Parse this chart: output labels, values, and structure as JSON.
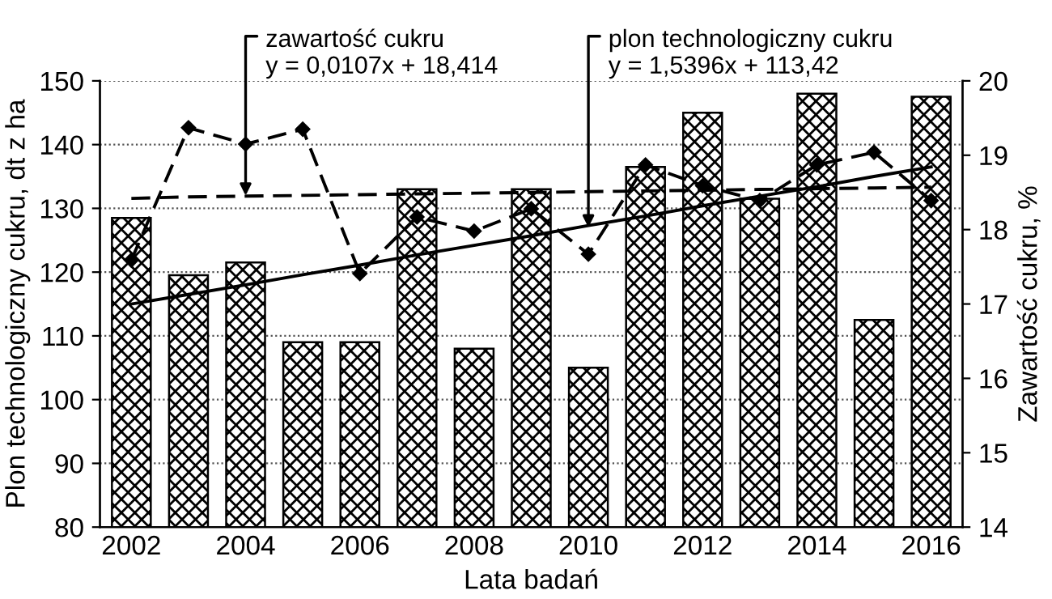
{
  "chart_data": {
    "type": "bar",
    "xlabel": "Lata badań",
    "ylabel": "Plon technologiczny cukru, dt z ha",
    "y2label": "Zawartość cukru, %",
    "categories": [
      "2002",
      null,
      "2004",
      null,
      "2006",
      null,
      "2008",
      null,
      "2010",
      null,
      "2012",
      null,
      "2014",
      null,
      "2016"
    ],
    "series": [
      {
        "color": "#000000",
        "values": [
          128.5,
          119.5,
          121.5,
          109,
          109,
          133,
          108,
          133,
          105,
          136.5,
          145,
          131.5,
          148,
          112.5,
          147.5
        ]
      },
      {
        "type": "line",
        "axis": "y2",
        "color": "#000000",
        "line_style": "dashed",
        "marker": "diamond",
        "values": [
          17.59,
          19.37,
          19.15,
          19.35,
          17.41,
          18.17,
          17.98,
          18.28,
          17.67,
          18.87,
          18.59,
          18.39,
          18.87,
          19.04,
          18.39
        ]
      },
      {
        "type": "line",
        "color": "#000000",
        "line_style": "solid",
        "marker": "none",
        "values": [
          115.0,
          116.5,
          118.0,
          119.6,
          121.1,
          122.7,
          124.2,
          125.7,
          127.3,
          128.8,
          130.4,
          131.9,
          133.4,
          135.0,
          136.5
        ]
      },
      {
        "type": "line",
        "axis": "y2",
        "color": "#000000",
        "line_style": "dashed",
        "marker": "none",
        "values": [
          18.42,
          18.44,
          18.45,
          18.46,
          18.47,
          18.48,
          18.49,
          18.5,
          18.51,
          18.52,
          18.53,
          18.54,
          18.55,
          18.56,
          18.57
        ]
      }
    ],
    "ylim": [
      80,
      150
    ],
    "yticks": [
      80,
      90,
      100,
      110,
      120,
      130,
      140,
      150
    ],
    "y2lim": [
      14,
      20
    ],
    "y2ticks": [
      14,
      15,
      16,
      17,
      18,
      19,
      20
    ],
    "grid": "y",
    "legend": false,
    "annotations": [
      {
        "text": "zawartość cukru\ny = 0,0107x + 18,414",
        "x": "2004",
        "y": 132
      },
      {
        "text": "plon technologiczny cukru\ny = 1,5396x + 113,42",
        "x": "2010",
        "y": 127
      }
    ]
  }
}
